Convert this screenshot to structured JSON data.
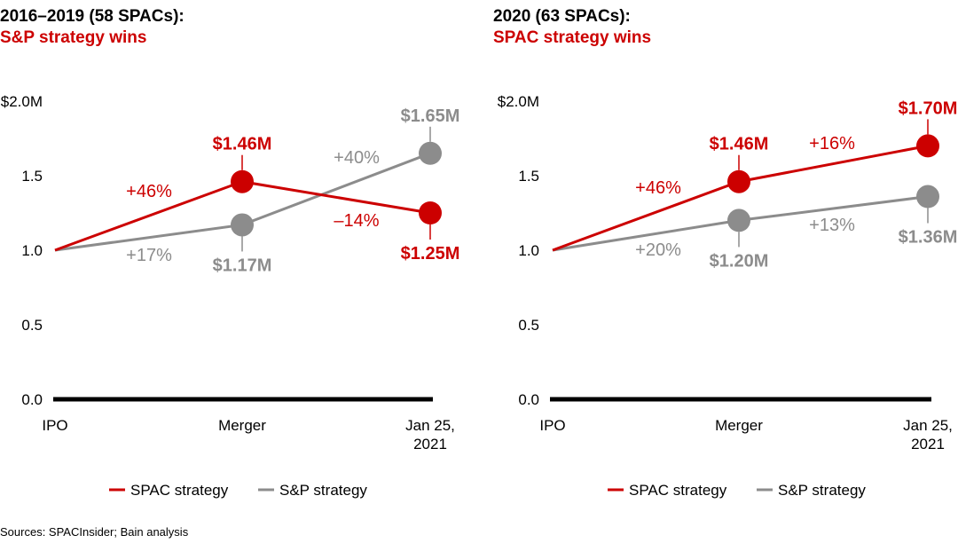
{
  "colors": {
    "spac": "#cc0000",
    "sp": "#8c8c8c",
    "axis": "#000000"
  },
  "sources": "Sources: SPACInsider; Bain analysis",
  "chart_data": [
    {
      "type": "line",
      "title": "2016–2019 (58 SPACs):",
      "subtitle": "S&P strategy wins",
      "categories": [
        "IPO",
        "Merger",
        "Jan 25, 2021"
      ],
      "category_lines": [
        [
          "IPO"
        ],
        [
          "Merger"
        ],
        [
          "Jan 25,",
          "2021"
        ]
      ],
      "y_ticks": [
        "0.0",
        "0.5",
        "1.0",
        "1.5",
        "$2.0M"
      ],
      "y_tick_values": [
        0,
        0.5,
        1.0,
        1.5,
        2.0
      ],
      "ylim": [
        0,
        2.0
      ],
      "grid": false,
      "legend_position": "bottom",
      "series": [
        {
          "name": "SPAC strategy",
          "key": "spac",
          "values": [
            1.0,
            1.46,
            1.25
          ],
          "value_labels": [
            null,
            "$1.46M",
            "$1.25M"
          ],
          "change_labels": [
            "+46%",
            "–14%"
          ]
        },
        {
          "name": "S&P strategy",
          "key": "sp",
          "values": [
            1.0,
            1.17,
            1.65
          ],
          "value_labels": [
            null,
            "$1.17M",
            "$1.65M"
          ],
          "change_labels": [
            "+17%",
            "+40%"
          ]
        }
      ]
    },
    {
      "type": "line",
      "title": "2020 (63 SPACs):",
      "subtitle": "SPAC strategy wins",
      "categories": [
        "IPO",
        "Merger",
        "Jan 25, 2021"
      ],
      "category_lines": [
        [
          "IPO"
        ],
        [
          "Merger"
        ],
        [
          "Jan 25,",
          "2021"
        ]
      ],
      "y_ticks": [
        "0.0",
        "0.5",
        "1.0",
        "1.5",
        "$2.0M"
      ],
      "y_tick_values": [
        0,
        0.5,
        1.0,
        1.5,
        2.0
      ],
      "ylim": [
        0,
        2.0
      ],
      "grid": false,
      "legend_position": "bottom",
      "series": [
        {
          "name": "SPAC strategy",
          "key": "spac",
          "values": [
            1.0,
            1.46,
            1.7
          ],
          "value_labels": [
            null,
            "$1.46M",
            "$1.70M"
          ],
          "change_labels": [
            "+46%",
            "+16%"
          ]
        },
        {
          "name": "S&P strategy",
          "key": "sp",
          "values": [
            1.0,
            1.2,
            1.36
          ],
          "value_labels": [
            null,
            "$1.20M",
            "$1.36M"
          ],
          "change_labels": [
            "+20%",
            "+13%"
          ]
        }
      ]
    }
  ]
}
